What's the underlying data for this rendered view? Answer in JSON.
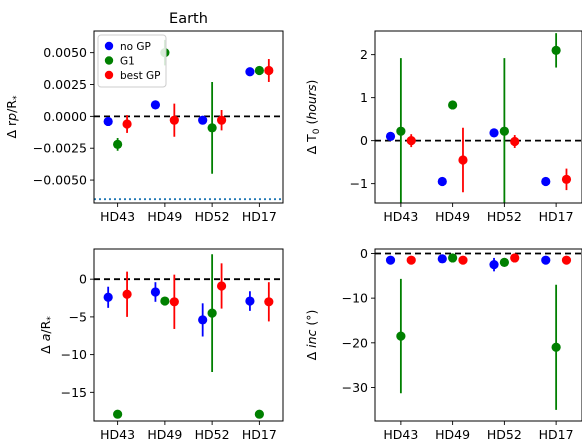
{
  "chart_data": [
    {
      "type": "scatter",
      "panel": "top-left",
      "title": "Earth",
      "ylabel_html": "Δ r<tspan font-style=\"italic\">p</tspan>/R<tspan font-size=\"9\" dy=\"3\">*</tspan>",
      "ylabel": "Δ rp/R*",
      "categories": [
        "HD43",
        "HD49",
        "HD52",
        "HD17"
      ],
      "ylim": [
        -0.0068,
        0.0067
      ],
      "yticks": [
        -0.005,
        -0.0025,
        0.0,
        0.0025,
        0.005
      ],
      "ytick_labels": [
        "−0.0050",
        "−0.0025",
        "0.0000",
        "0.0025",
        "0.0050"
      ],
      "zero_line": true,
      "hline_dotted": -0.0065,
      "legend": {
        "position": "upper-left",
        "entries": [
          "no GP",
          "G1",
          "best GP"
        ]
      },
      "series": [
        {
          "name": "no GP",
          "color": "#0000ff",
          "offset": -0.2,
          "values": [
            -0.0004,
            0.0009,
            -0.0003,
            0.0035
          ],
          "err": [
            0.0,
            0.0,
            0.0,
            0.0003
          ]
        },
        {
          "name": "G1",
          "color": "#008000",
          "offset": 0.0,
          "values": [
            -0.0022,
            0.005,
            -0.0009,
            0.0036
          ],
          "err": [
            0.0005,
            0.001,
            0.0036,
            0.0003
          ]
        },
        {
          "name": "best GP",
          "color": "#ff0000",
          "offset": 0.2,
          "values": [
            -0.0006,
            -0.0003,
            -0.0003,
            0.0036
          ],
          "err": [
            0.0007,
            0.0013,
            0.0008,
            0.0009
          ]
        }
      ]
    },
    {
      "type": "scatter",
      "panel": "top-right",
      "title": "",
      "ylabel_html": "Δ T<tspan font-size=\"9\" dy=\"3\">0</tspan><tspan dy=\"-3\"> (</tspan><tspan font-style=\"italic\">hours</tspan>)",
      "ylabel": "Δ T0 (hours)",
      "categories": [
        "HD43",
        "HD49",
        "HD52",
        "HD17"
      ],
      "ylim": [
        -1.45,
        2.55
      ],
      "yticks": [
        -1,
        0,
        1,
        2
      ],
      "ytick_labels": [
        "−1",
        "0",
        "1",
        "2"
      ],
      "zero_line": true,
      "series": [
        {
          "name": "no GP",
          "color": "#0000ff",
          "offset": -0.2,
          "values": [
            0.1,
            -0.95,
            0.18,
            -0.95
          ],
          "err": [
            0.0,
            0.0,
            0.0,
            0.0
          ]
        },
        {
          "name": "G1",
          "color": "#008000",
          "offset": 0.0,
          "values": [
            0.22,
            0.83,
            0.22,
            2.1
          ],
          "err": [
            1.7,
            0.0,
            1.7,
            0.4
          ]
        },
        {
          "name": "best GP",
          "color": "#ff0000",
          "offset": 0.2,
          "values": [
            0.0,
            -0.45,
            -0.02,
            -0.9
          ],
          "err": [
            0.15,
            0.75,
            0.15,
            0.25
          ]
        }
      ]
    },
    {
      "type": "scatter",
      "panel": "bottom-left",
      "title": "",
      "ylabel_html": "Δ <tspan font-style=\"italic\">a</tspan>/R<tspan font-size=\"9\" dy=\"3\">*</tspan>",
      "ylabel": "Δ a/R*",
      "categories": [
        "HD43",
        "HD49",
        "HD52",
        "HD17"
      ],
      "ylim": [
        -18.8,
        4.0
      ],
      "yticks": [
        -15,
        -10,
        -5,
        0
      ],
      "ytick_labels": [
        "−15",
        "−10",
        "−5",
        "0"
      ],
      "zero_line": true,
      "series": [
        {
          "name": "no GP",
          "color": "#0000ff",
          "offset": -0.2,
          "values": [
            -2.4,
            -1.7,
            -5.4,
            -2.9
          ],
          "err": [
            1.4,
            1.3,
            2.2,
            1.3
          ]
        },
        {
          "name": "G1",
          "color": "#008000",
          "offset": 0.0,
          "values": [
            -17.9,
            -2.9,
            -4.5,
            -17.9
          ],
          "err": [
            0.0,
            0.0,
            7.8,
            0.0
          ]
        },
        {
          "name": "best GP",
          "color": "#ff0000",
          "offset": 0.2,
          "values": [
            -2.0,
            -3.0,
            -0.9,
            -3.0
          ],
          "err": [
            3.0,
            3.6,
            3.0,
            2.6
          ]
        }
      ]
    },
    {
      "type": "scatter",
      "panel": "bottom-right",
      "title": "",
      "ylabel_html": "Δ <tspan font-style=\"italic\">inc</tspan> (°)",
      "ylabel": "Δ inc (°)",
      "categories": [
        "HD43",
        "HD49",
        "HD52",
        "HD17"
      ],
      "ylim": [
        -37.5,
        1.0
      ],
      "yticks": [
        -30,
        -20,
        -10,
        0
      ],
      "ytick_labels": [
        "−30",
        "−20",
        "−10",
        "0"
      ],
      "zero_line": true,
      "series": [
        {
          "name": "no GP",
          "color": "#0000ff",
          "offset": -0.2,
          "values": [
            -1.5,
            -1.2,
            -2.5,
            -1.5
          ],
          "err": [
            0.0,
            0.0,
            1.5,
            0.0
          ]
        },
        {
          "name": "G1",
          "color": "#008000",
          "offset": 0.0,
          "values": [
            -18.5,
            -1.0,
            -2.0,
            -21.0
          ],
          "err": [
            12.8,
            0.0,
            0.0,
            14.0
          ]
        },
        {
          "name": "best GP",
          "color": "#ff0000",
          "offset": 0.2,
          "values": [
            -1.5,
            -1.5,
            -1.0,
            -1.5
          ],
          "err": [
            0.0,
            0.0,
            0.0,
            0.0
          ]
        }
      ]
    }
  ]
}
